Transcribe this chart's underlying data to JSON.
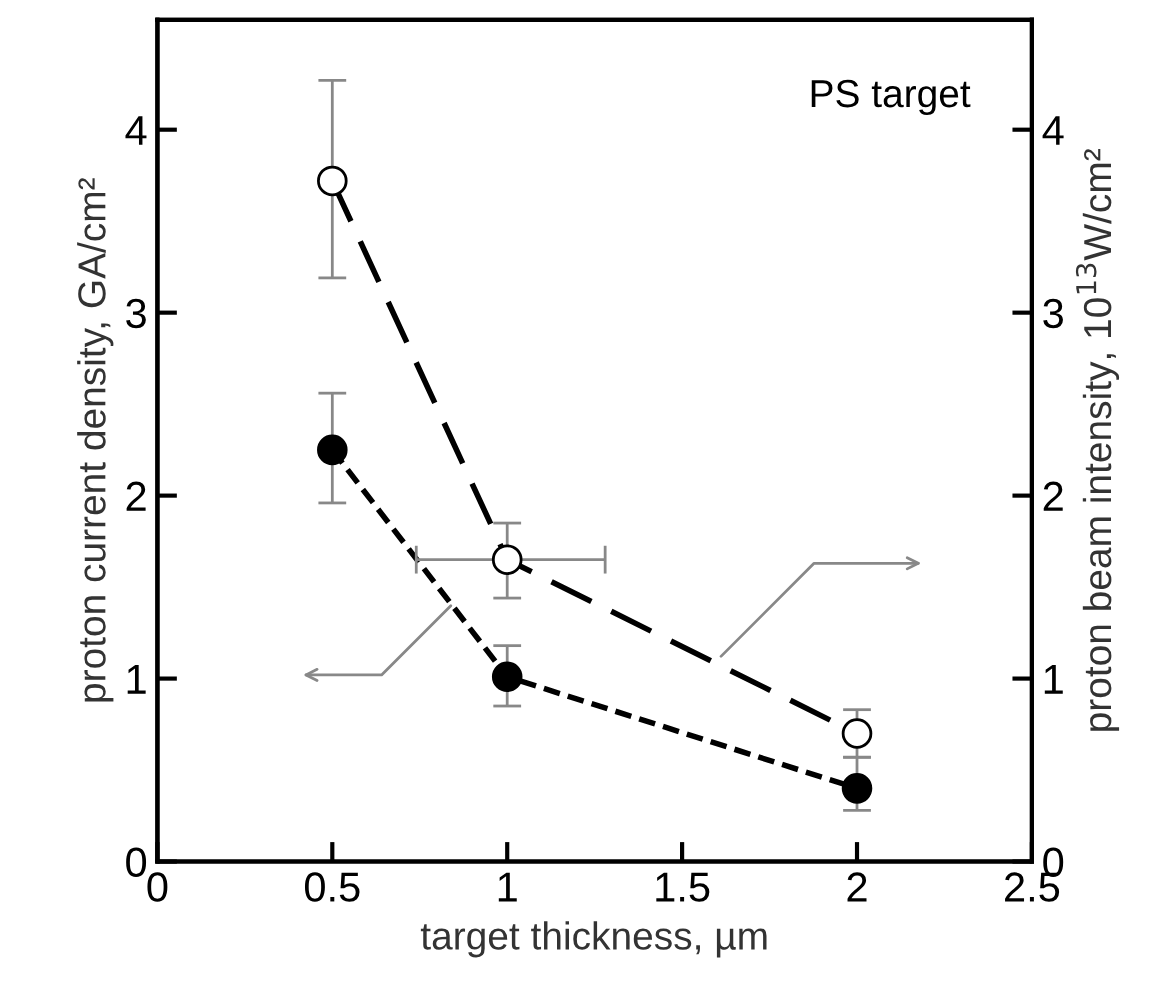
{
  "chart_data": {
    "type": "line",
    "xlabel": "target thickness, µm",
    "ylabel": "proton current density, GA/cm²",
    "y2label": "proton beam intensity, 10$^{13}$W/cm²",
    "x": [
      0.5,
      1,
      2
    ],
    "series": [
      {
        "color": "#000000",
        "values": [
          2.25,
          1.01,
          0.4
        ],
        "errors": [
          [
            1.96,
            2.56
          ],
          [
            0.85,
            1.18
          ],
          [
            0.28,
            0.57
          ]
        ],
        "line_style": "dotted"
      },
      {
        "color": "#ffffff",
        "values": [
          3.72,
          1.65,
          0.7
        ],
        "errors": [
          [
            3.19,
            4.27
          ],
          [
            1.44,
            1.85
          ],
          [
            0.57,
            0.83
          ]
        ],
        "xerrors": [
          null,
          [
            0.74,
            1.28
          ],
          null
        ],
        "axis": "y2",
        "line_style": "dashed"
      }
    ],
    "marker": "circle",
    "xlim": [
      0,
      2.5
    ],
    "xticks": [
      0,
      0.5,
      1,
      1.5,
      2,
      2.5
    ],
    "ylim": [
      0,
      4.6
    ],
    "yticks": [
      0,
      1,
      2,
      3,
      4
    ],
    "y2lim": [
      0,
      4.6
    ],
    "y2ticks": [
      0,
      1,
      2,
      3,
      4
    ],
    "annotations": [
      "PS target"
    ],
    "grid": false,
    "legend": false
  }
}
